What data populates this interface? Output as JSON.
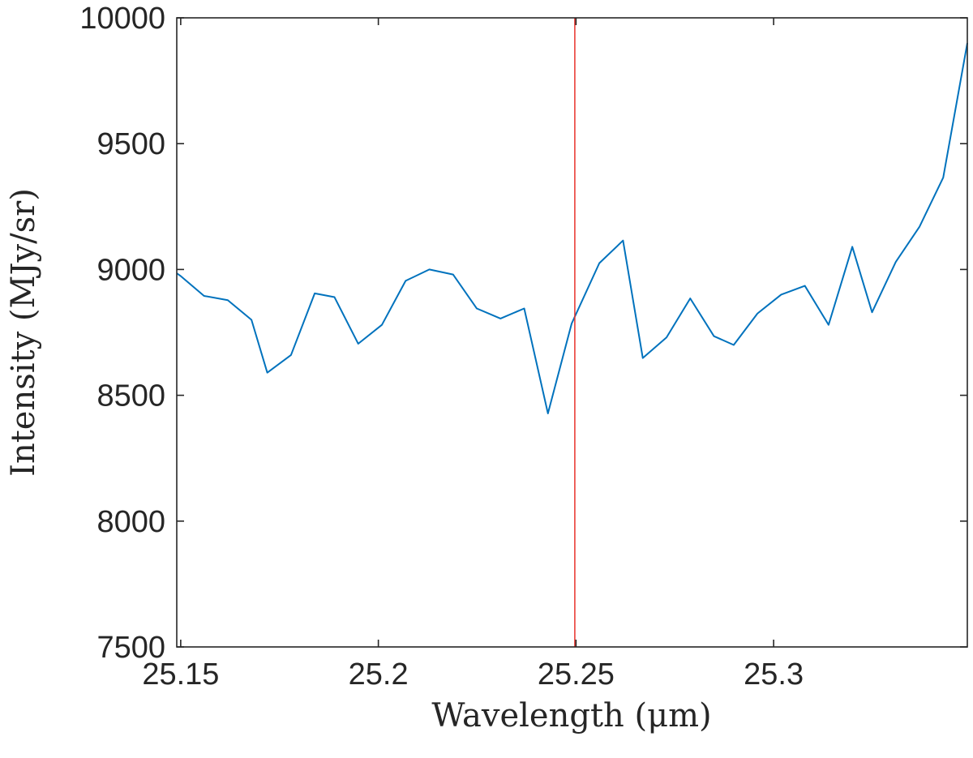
{
  "chart_data": {
    "type": "line",
    "title": "",
    "xlabel": "Wavelength (μm)",
    "ylabel": "Intensity (MJy/sr)",
    "xlim": [
      25.149,
      25.349
    ],
    "ylim": [
      7500,
      10000
    ],
    "xticks": [
      25.15,
      25.2,
      25.25,
      25.3
    ],
    "xtick_labels": [
      "25.15",
      "25.2",
      "25.25",
      "25.3"
    ],
    "yticks": [
      7500,
      8000,
      8500,
      9000,
      9500,
      10000
    ],
    "ytick_labels": [
      "7500",
      "8000",
      "8500",
      "9000",
      "9500",
      "10000"
    ],
    "grid": false,
    "series": [
      {
        "color": "#0072BD",
        "x": [
          25.149,
          25.1499,
          25.1559,
          25.1619,
          25.1679,
          25.1719,
          25.1779,
          25.1839,
          25.1889,
          25.1949,
          25.2009,
          25.2069,
          25.2129,
          25.2189,
          25.2249,
          25.2309,
          25.2369,
          25.2429,
          25.2489,
          25.2559,
          25.2619,
          25.2669,
          25.2729,
          25.2789,
          25.2849,
          25.2899,
          25.2959,
          25.3019,
          25.3079,
          25.3139,
          25.3199,
          25.3249,
          25.3309,
          25.3369,
          25.3429,
          25.349
        ],
        "values": [
          8985,
          8975,
          8895,
          8878,
          8800,
          8590,
          8660,
          8905,
          8890,
          8705,
          8780,
          8955,
          9000,
          8980,
          8845,
          8805,
          8845,
          8428,
          8785,
          9025,
          9115,
          8648,
          8730,
          8885,
          8735,
          8700,
          8825,
          8900,
          8935,
          8780,
          9090,
          8830,
          9030,
          9170,
          9365,
          9900
        ]
      }
    ],
    "vertical_lines": [
      {
        "x": 25.2497,
        "color": "#E8302A"
      }
    ]
  }
}
